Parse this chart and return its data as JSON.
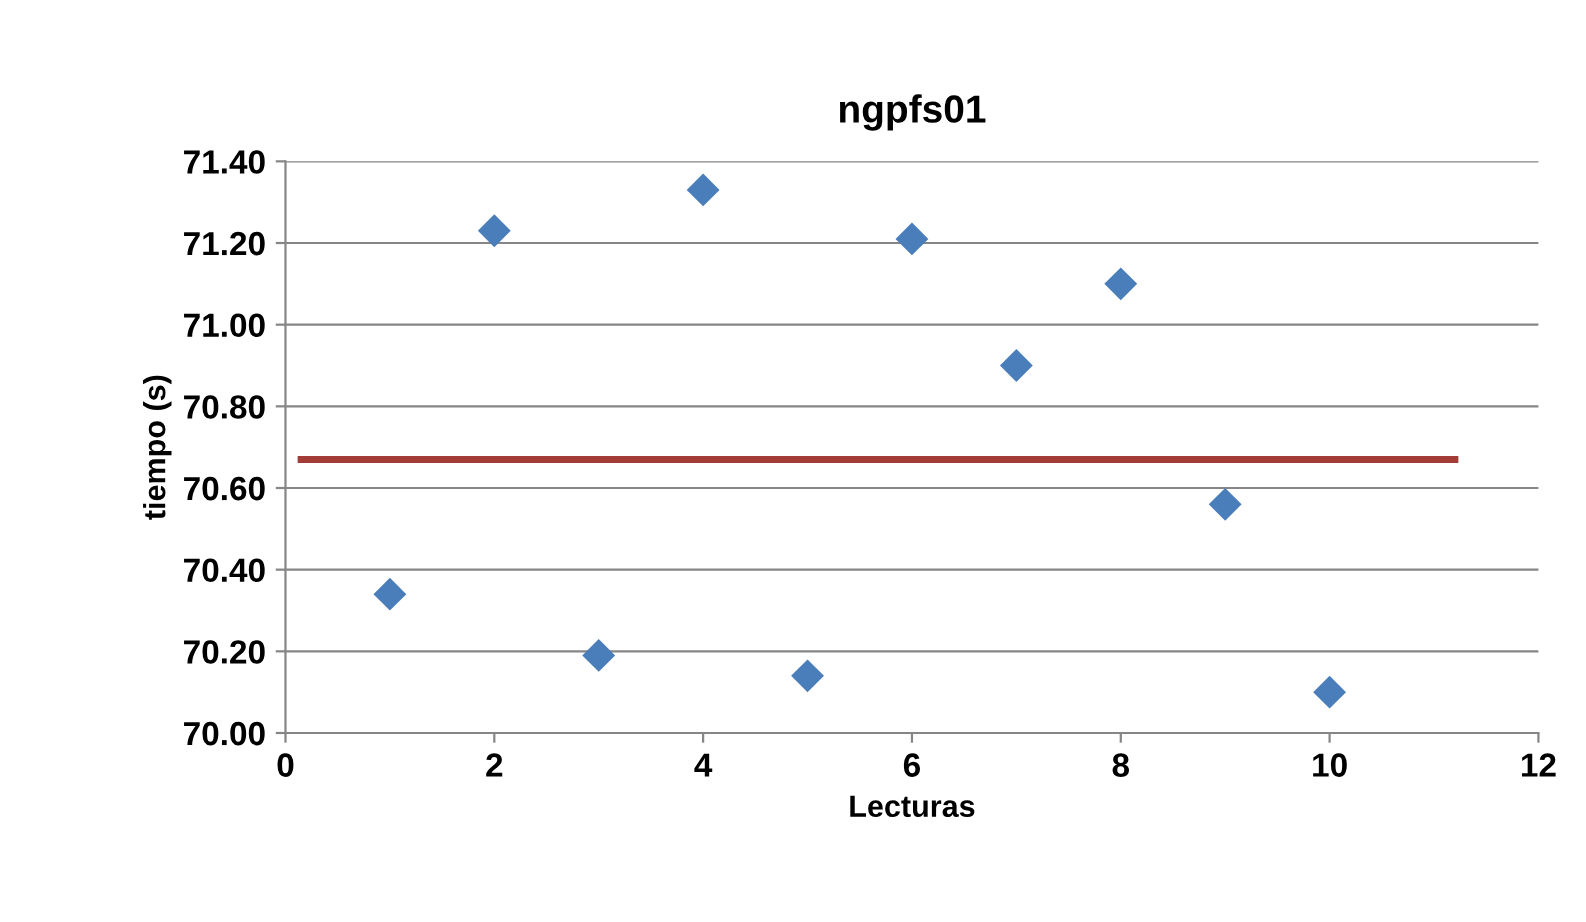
{
  "chart_data": {
    "type": "scatter",
    "title": "ngpfs01",
    "xlabel": "Lecturas",
    "ylabel": "tiempo (s)",
    "xlim": [
      0,
      12
    ],
    "xticks": [
      0,
      2,
      4,
      6,
      8,
      10,
      12
    ],
    "ylim": [
      70.0,
      71.4
    ],
    "yticks": [
      {
        "value": 70.0,
        "label": "70.00"
      },
      {
        "value": 70.2,
        "label": "70.20"
      },
      {
        "value": 70.4,
        "label": "70.40"
      },
      {
        "value": 70.6,
        "label": "70.60"
      },
      {
        "value": 70.8,
        "label": "70.80"
      },
      {
        "value": 71.0,
        "label": "71.00"
      },
      {
        "value": 71.2,
        "label": "71.20"
      },
      {
        "value": 71.4,
        "label": "71.40"
      }
    ],
    "grid": "y",
    "legend": false,
    "series": [
      {
        "color": "#4a7ebb",
        "marker": "diamond",
        "x": [
          1,
          2,
          3,
          4,
          5,
          6,
          7,
          8,
          9,
          10
        ],
        "values": [
          70.34,
          71.23,
          70.19,
          71.33,
          70.14,
          71.21,
          70.9,
          71.1,
          70.56,
          70.1
        ]
      },
      {
        "type": "line",
        "color": "#a33b36",
        "marker": "none",
        "line_style": "solid",
        "x": [
          0.15,
          11.2
        ],
        "values": [
          70.67,
          70.67
        ]
      }
    ]
  }
}
